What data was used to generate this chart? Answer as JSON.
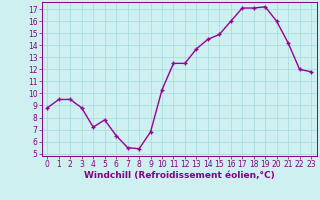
{
  "x": [
    0,
    1,
    2,
    3,
    4,
    5,
    6,
    7,
    8,
    9,
    10,
    11,
    12,
    13,
    14,
    15,
    16,
    17,
    18,
    19,
    20,
    21,
    22,
    23
  ],
  "y": [
    8.8,
    9.5,
    9.5,
    8.8,
    7.2,
    7.8,
    6.5,
    5.5,
    5.4,
    6.8,
    10.3,
    12.5,
    12.5,
    13.7,
    14.5,
    14.9,
    16.0,
    17.1,
    17.1,
    17.2,
    16.0,
    14.2,
    12.0,
    11.8
  ],
  "line_color": "#990099",
  "marker": "+",
  "bg_color": "#cff0f0",
  "grid_color": "#aadddd",
  "xlabel": "Windchill (Refroidissement éolien,°C)",
  "ylim": [
    4.8,
    17.6
  ],
  "xlim": [
    -0.5,
    23.5
  ],
  "yticks": [
    5,
    6,
    7,
    8,
    9,
    10,
    11,
    12,
    13,
    14,
    15,
    16,
    17
  ],
  "xticks": [
    0,
    1,
    2,
    3,
    4,
    5,
    6,
    7,
    8,
    9,
    10,
    11,
    12,
    13,
    14,
    15,
    16,
    17,
    18,
    19,
    20,
    21,
    22,
    23
  ],
  "tick_label_size": 5.5,
  "xlabel_size": 6.5,
  "axis_color": "#880088",
  "line_width": 1.0,
  "marker_size": 3.5,
  "marker_edge_width": 1.0
}
